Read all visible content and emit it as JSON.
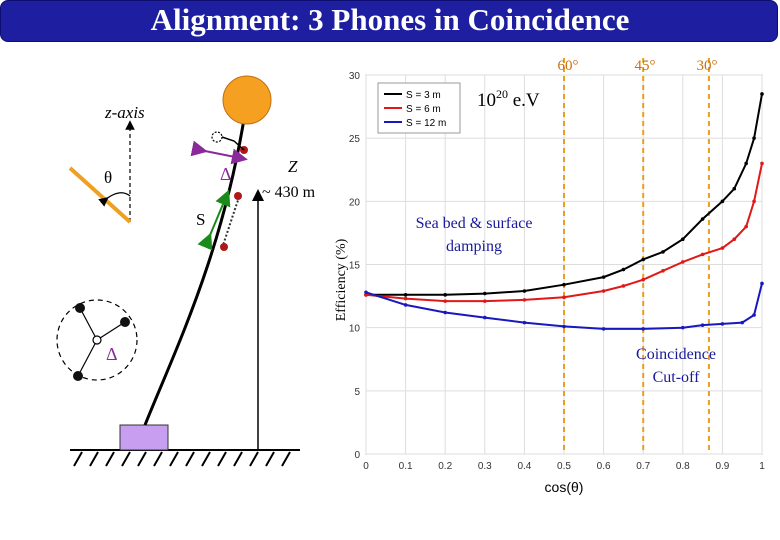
{
  "title": "Alignment: 3 Phones in Coincidence",
  "diagram": {
    "z_axis_label": "z-axis",
    "theta_label": "θ",
    "delta_label": "Δ",
    "s_label": "S",
    "z_label": "Z",
    "height_label": "~ 430 m",
    "delta_bottom_label": "Δ"
  },
  "annotations": {
    "energy_base": "10",
    "energy_exp": "20",
    "energy_unit": " e.V",
    "angle_60": "60°",
    "angle_45": "45°",
    "angle_30": "30°",
    "seabed_line1": "Sea bed & surface",
    "seabed_line2": "damping",
    "cutoff_line1": "Coincidence",
    "cutoff_line2": "Cut-off"
  },
  "colors": {
    "title_bg": "#1e1ea0",
    "buoy": "#f5a020",
    "anchor": "#c89ef0",
    "node": "#b01818",
    "series_3m": "#000000",
    "series_6m": "#e01818",
    "series_12m": "#1818c0",
    "dashed": "#e8a020"
  },
  "chart_data": {
    "type": "line",
    "xlabel": "cos(θ)",
    "ylabel": "Efficiency (%)",
    "xlim": [
      0,
      1
    ],
    "ylim": [
      0,
      30
    ],
    "xticks": [
      "0",
      "0.1",
      "0.2",
      "0.3",
      "0.4",
      "0.5",
      "0.6",
      "0.7",
      "0.8",
      "0.9",
      "1"
    ],
    "yticks": [
      "0",
      "5",
      "10",
      "15",
      "20",
      "25",
      "30"
    ],
    "legend_position": "top-right",
    "vlines": [
      0.5,
      0.7,
      0.866
    ],
    "series": [
      {
        "name": "S = 3 m",
        "color": "#000000",
        "x": [
          0,
          0.1,
          0.2,
          0.3,
          0.4,
          0.5,
          0.6,
          0.65,
          0.7,
          0.75,
          0.8,
          0.85,
          0.9,
          0.93,
          0.96,
          0.98,
          1.0
        ],
        "y": [
          12.6,
          12.6,
          12.6,
          12.7,
          12.9,
          13.4,
          14.0,
          14.6,
          15.4,
          16.0,
          17.0,
          18.6,
          20.0,
          21.0,
          23.0,
          25.0,
          28.5
        ]
      },
      {
        "name": "S = 6 m",
        "color": "#e01818",
        "x": [
          0,
          0.1,
          0.2,
          0.3,
          0.4,
          0.5,
          0.6,
          0.65,
          0.7,
          0.75,
          0.8,
          0.85,
          0.9,
          0.93,
          0.96,
          0.98,
          1.0
        ],
        "y": [
          12.6,
          12.3,
          12.1,
          12.1,
          12.2,
          12.4,
          12.9,
          13.3,
          13.8,
          14.5,
          15.2,
          15.8,
          16.3,
          17.0,
          18.0,
          20.0,
          23.0
        ]
      },
      {
        "name": "S = 12 m",
        "color": "#1818c0",
        "x": [
          0,
          0.1,
          0.2,
          0.3,
          0.4,
          0.5,
          0.6,
          0.7,
          0.8,
          0.85,
          0.9,
          0.95,
          0.98,
          1.0
        ],
        "y": [
          12.8,
          11.8,
          11.2,
          10.8,
          10.4,
          10.1,
          9.9,
          9.9,
          10.0,
          10.2,
          10.3,
          10.4,
          11.0,
          13.5
        ]
      }
    ]
  }
}
